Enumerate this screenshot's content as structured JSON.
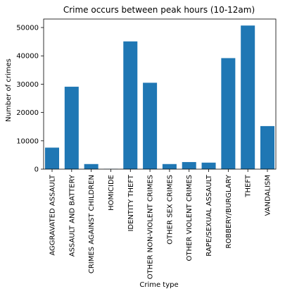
{
  "chart_data": {
    "type": "bar",
    "title": "Crime occurs between peak hours (10-12am)",
    "xlabel": "Crime type",
    "ylabel": "Number of crimes",
    "categories": [
      "AGGRAVATED ASSAULT",
      "ASSAULT AND BATTERY",
      "CRIMES AGAINST CHILDREN",
      "HOMICIDE",
      "IDENTITY THEFT",
      "OTHER NON-VIOLENT CRIMES",
      "OTHER SEX CRIMES",
      "OTHER VIOLENT CRIMES",
      "RAPE/SEXUAL ASSAULT",
      "ROBBERY/BURGLARY",
      "THEFT",
      "VANDALISM"
    ],
    "values": [
      7600,
      29100,
      1800,
      100,
      45100,
      30500,
      1800,
      2500,
      2300,
      39200,
      50700,
      15200
    ],
    "ylim": [
      0,
      53000
    ],
    "yticks": [
      0,
      10000,
      20000,
      30000,
      40000,
      50000
    ],
    "grid": false,
    "colors": {
      "bar": "#1f77b4",
      "axis": "#000000",
      "background": "#ffffff"
    }
  }
}
